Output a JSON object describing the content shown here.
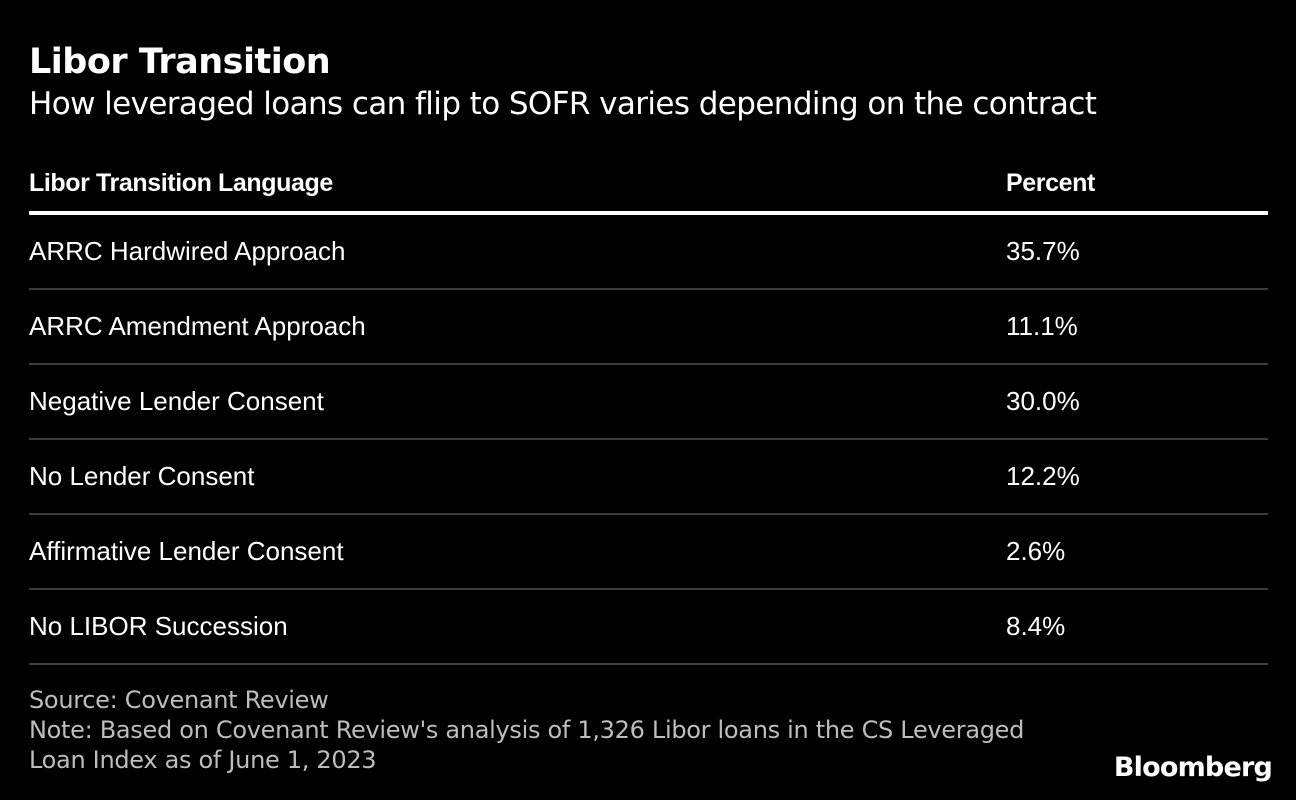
{
  "title": "Libor Transition",
  "subtitle": "How leveraged loans can flip to SOFR varies depending on the contract",
  "chart_data": {
    "type": "table",
    "columns": [
      "Libor Transition Language",
      "Percent"
    ],
    "rows": [
      [
        "ARRC Hardwired Approach",
        "35.7%"
      ],
      [
        "ARRC Amendment Approach",
        "11.1%"
      ],
      [
        "Negative Lender Consent",
        "30.0%"
      ],
      [
        "No Lender Consent",
        "12.2%"
      ],
      [
        "Affirmative Lender Consent",
        "2.6%"
      ],
      [
        "No LIBOR Succession",
        "8.4%"
      ]
    ]
  },
  "footer": {
    "source": "Source: Covenant Review",
    "note_line1": "Note: Based on Covenant Review's analysis of 1,326 Libor loans in the CS Leveraged",
    "note_line2": "Loan Index as of June 1, 2023"
  },
  "logo": "Bloomberg"
}
